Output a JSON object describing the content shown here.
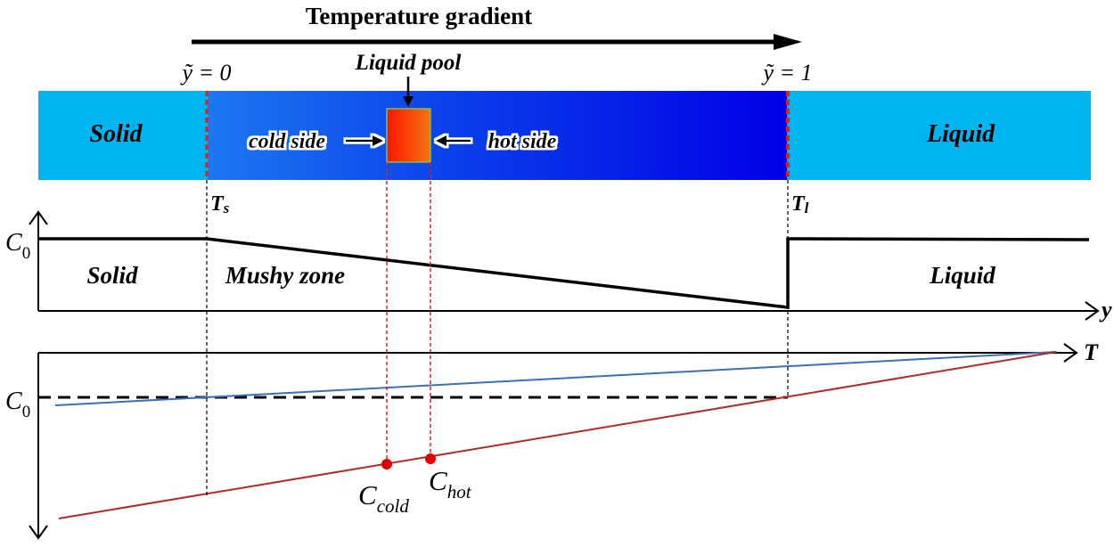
{
  "title": "Temperature gradient",
  "labels": {
    "y_start": "ỹ = 0",
    "y_end": "ỹ = 1",
    "liquid_pool": "Liquid pool",
    "solid_top": "Solid",
    "liquid_top": "Liquid",
    "cold_side": "cold side",
    "hot_side": "hot side",
    "ts_main": "T",
    "ts_sub": "s",
    "tl_main": "T",
    "tl_sub": "l",
    "c0_top": "C",
    "c0_top_sub": "0",
    "solid_mid": "Solid",
    "mushy_zone": "Mushy zone",
    "liquid_mid": "Liquid",
    "y_axis": "y",
    "t_axis": "T",
    "c0_bottom": "C",
    "c0_bottom_sub": "0",
    "c_cold": "C",
    "c_cold_sub": "cold",
    "c_hot": "C",
    "c_hot_sub": "hot"
  },
  "colors": {
    "solid_liquid_region": "#00b4f0",
    "mushy_gradient_start": "#1c78f0",
    "mushy_gradient_end": "#0000e6",
    "pool_gradient_start": "#ff1400",
    "pool_gradient_end": "#f07814",
    "solidus_line": "#3e6fb0",
    "liquidus_line": "#b02a2a",
    "guide_red": "#e02020",
    "point_red": "#e00000"
  },
  "icons": {
    "title_arrow": "right-arrow-icon",
    "pool_arrow": "down-arrow-icon",
    "cold_arrow": "right-arrow-icon",
    "hot_arrow": "left-arrow-icon"
  }
}
